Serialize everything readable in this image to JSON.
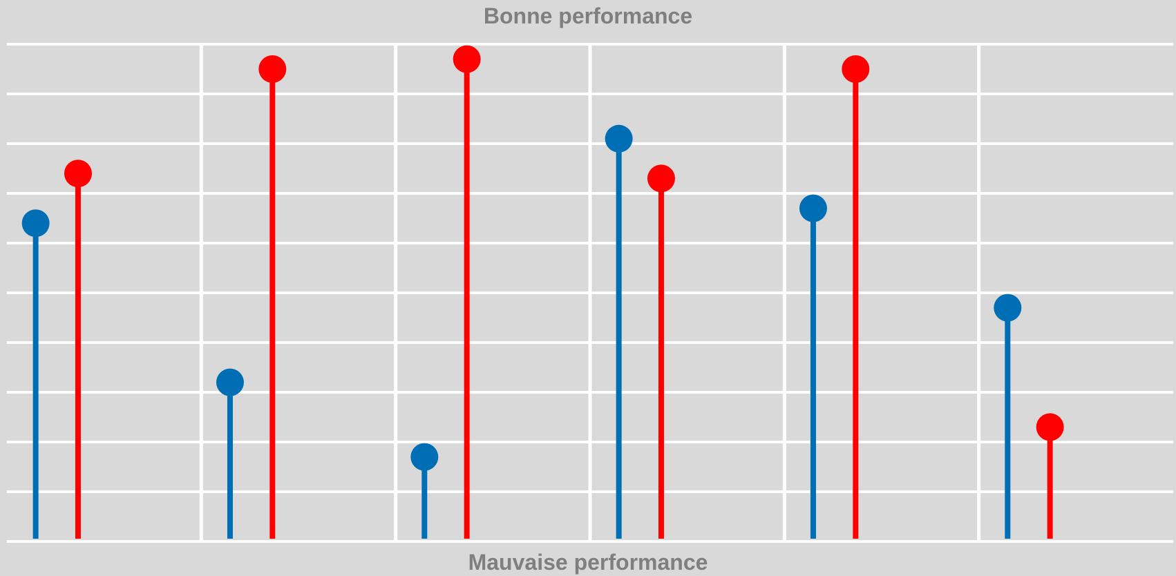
{
  "chart_data": {
    "type": "lollipop",
    "title": "",
    "top_label": "Bonne performance",
    "bottom_label": "Mauvaise performance",
    "xlabel": "",
    "ylabel": "",
    "ylim": [
      0,
      10
    ],
    "y_ticks_shown": false,
    "grid": true,
    "legend": "none",
    "categories": [
      "",
      "",
      "",
      "",
      "",
      ""
    ],
    "series": [
      {
        "color": "#006eb4",
        "values": [
          6.4,
          3.2,
          1.7,
          8.1,
          6.7,
          4.7
        ]
      },
      {
        "color": "#ff0000",
        "values": [
          7.4,
          9.5,
          9.7,
          7.3,
          9.5,
          2.3
        ]
      }
    ]
  }
}
